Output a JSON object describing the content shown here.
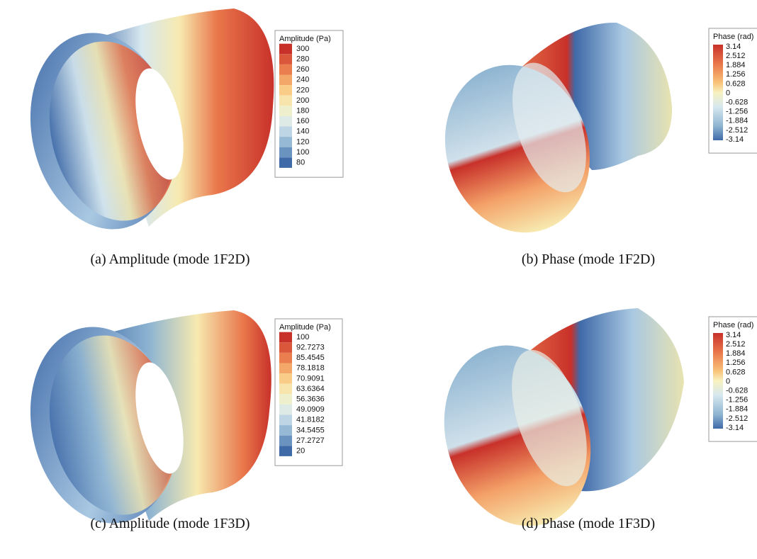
{
  "panels": [
    {
      "legend": {
        "title": "Amplitude (Pa)",
        "labels": [
          "300",
          "280",
          "260",
          "240",
          "220",
          "200",
          "180",
          "160",
          "140",
          "120",
          "100",
          "80"
        ]
      },
      "caption": "(a) Amplitude (mode 1F2D)"
    },
    {
      "legend": {
        "title": "Phase (rad)",
        "labels": [
          "3.14",
          "2.512",
          "1.884",
          "1.256",
          "0.628",
          "0",
          "-0.628",
          "-1.256",
          "-1.884",
          "-2.512",
          "-3.14"
        ]
      },
      "caption": "(b) Phase (mode 1F2D)"
    },
    {
      "legend": {
        "title": "Amplitude (Pa)",
        "labels": [
          "100",
          "92.7273",
          "85.4545",
          "78.1818",
          "70.9091",
          "63.6364",
          "56.3636",
          "49.0909",
          "41.8182",
          "34.5455",
          "27.2727",
          "20"
        ]
      },
      "caption": "(c) Amplitude (mode 1F3D)"
    },
    {
      "legend": {
        "title": "Phase (rad)",
        "labels": [
          "3.14",
          "2.512",
          "1.884",
          "1.256",
          "0.628",
          "0",
          "-0.628",
          "-1.256",
          "-1.884",
          "-2.512",
          "-3.14"
        ]
      },
      "caption": "(d) Phase (mode 1F3D)"
    }
  ]
}
